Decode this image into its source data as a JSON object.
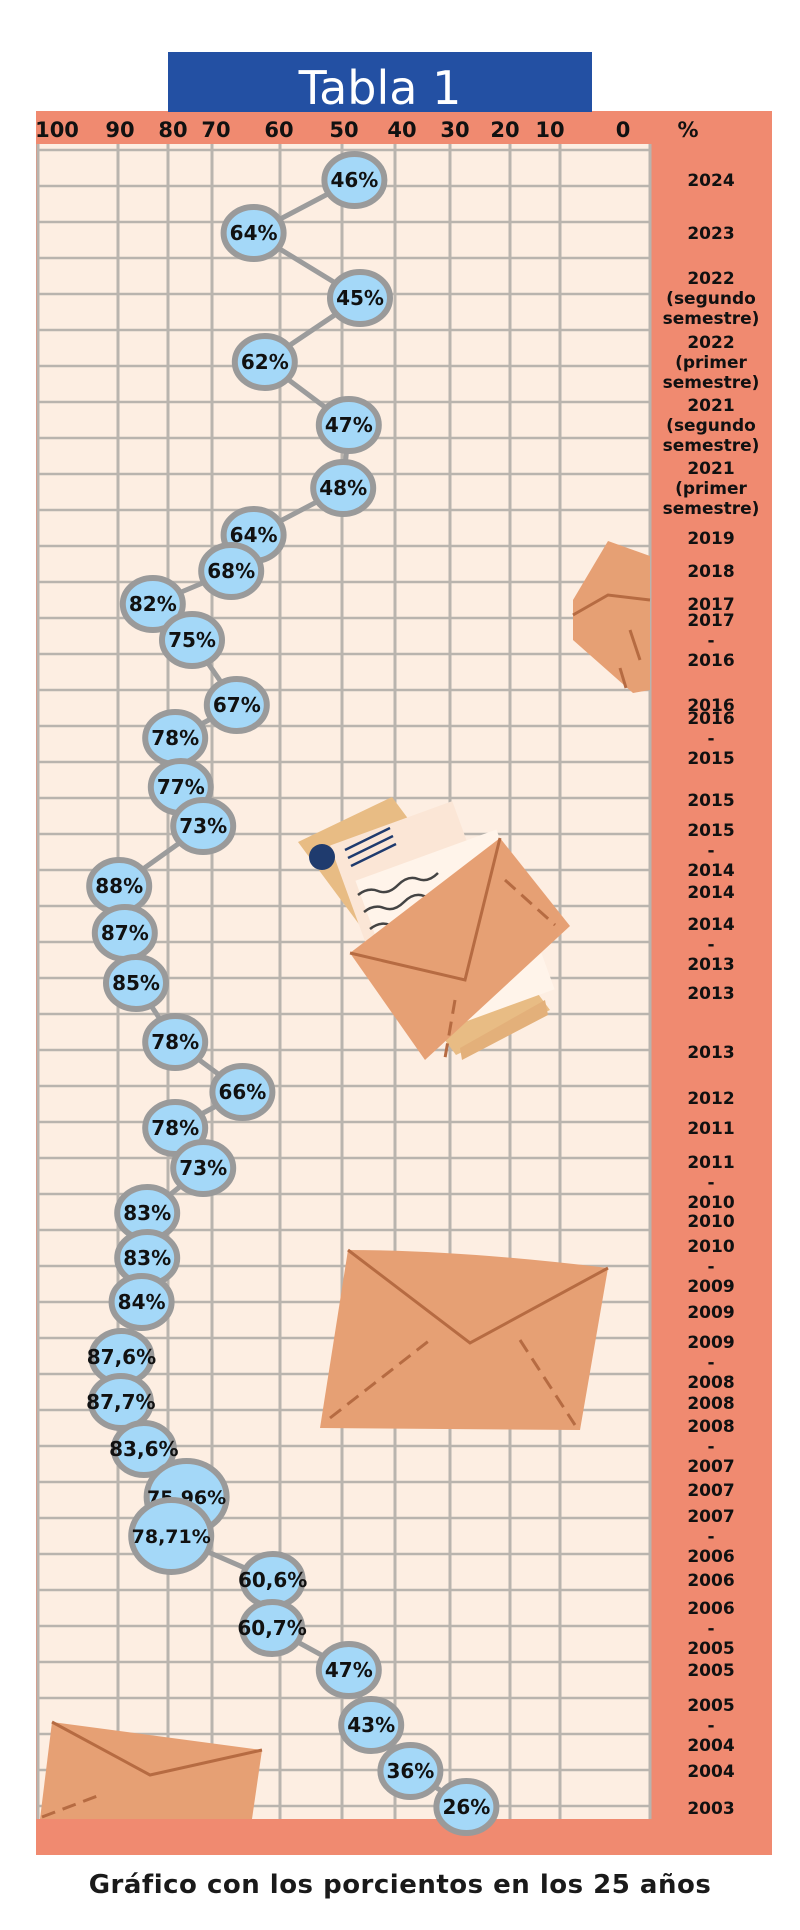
{
  "chart_data": {
    "type": "line",
    "title": "Tabla 1",
    "caption": "Gráfico con los porcientos en los 25 años",
    "axis_unit": "%",
    "x_ticks": [
      "100",
      "90",
      "80",
      "70",
      "60",
      "50",
      "40",
      "30",
      "20",
      "10",
      "0"
    ],
    "x_direction": "reversed",
    "series": [
      {
        "values": [
          {
            "label": "46%",
            "value": 46,
            "category": [
              "2024"
            ]
          },
          {
            "label": "64%",
            "value": 64,
            "category": [
              "2023"
            ]
          },
          {
            "label": "45%",
            "value": 45,
            "category": [
              "2022",
              "(segundo",
              "semestre)"
            ]
          },
          {
            "label": "62%",
            "value": 62,
            "category": [
              "2022",
              "(primer",
              "semestre)"
            ]
          },
          {
            "label": "47%",
            "value": 47,
            "category": [
              "2021",
              "(segundo",
              "semestre)"
            ]
          },
          {
            "label": "48%",
            "value": 48,
            "category": [
              "2021",
              "(primer",
              "semestre)"
            ]
          },
          {
            "label": "64%",
            "value": 64,
            "category": [
              "2019"
            ]
          },
          {
            "label": "68%",
            "value": 68,
            "category": [
              "2018"
            ]
          },
          {
            "label": "82%",
            "value": 82,
            "category": [
              "2017"
            ]
          },
          {
            "label": "75%",
            "value": 75,
            "category": [
              "2017",
              "-",
              "2016"
            ]
          },
          {
            "label": "67%",
            "value": 67,
            "category": [
              "2016"
            ]
          },
          {
            "label": "78%",
            "value": 78,
            "category": [
              "2016",
              "-",
              "2015"
            ]
          },
          {
            "label": "77%",
            "value": 77,
            "category": [
              "2015"
            ]
          },
          {
            "label": "73%",
            "value": 73,
            "category": [
              "2015",
              "-",
              "2014"
            ]
          },
          {
            "label": "88%",
            "value": 88,
            "category": [
              "2014"
            ]
          },
          {
            "label": "87%",
            "value": 87,
            "category": [
              "2014",
              "-",
              "2013"
            ]
          },
          {
            "label": "85%",
            "value": 85,
            "category": [
              "2013"
            ]
          },
          {
            "label": "78%",
            "value": 78,
            "category": [
              "2013"
            ]
          },
          {
            "label": "66%",
            "value": 66,
            "category": [
              "2012"
            ]
          },
          {
            "label": "78%",
            "value": 78,
            "category": [
              "2011"
            ]
          },
          {
            "label": "73%",
            "value": 73,
            "category": [
              "2011",
              "-",
              "2010"
            ]
          },
          {
            "label": "83%",
            "value": 83,
            "category": [
              "2010"
            ]
          },
          {
            "label": "83%",
            "value": 83,
            "category": [
              "2010",
              "-",
              "2009"
            ]
          },
          {
            "label": "84%",
            "value": 84,
            "category": [
              "2009"
            ]
          },
          {
            "label": "87,6%",
            "value": 87.6,
            "category": [
              "2009",
              "-",
              "2008"
            ]
          },
          {
            "label": "87,7%",
            "value": 87.7,
            "category": [
              "2008"
            ]
          },
          {
            "label": "83,6%",
            "value": 83.6,
            "category": [
              "2008",
              "-",
              "2007"
            ]
          },
          {
            "label": "75,96%",
            "value": 75.96,
            "category": [
              "2007"
            ]
          },
          {
            "label": "78,71%",
            "value": 78.71,
            "category": [
              "2007",
              "-",
              "2006"
            ]
          },
          {
            "label": "60,6%",
            "value": 60.6,
            "category": [
              "2006"
            ]
          },
          {
            "label": "60,7%",
            "value": 60.7,
            "category": [
              "2006",
              "-",
              "2005"
            ]
          },
          {
            "label": "47%",
            "value": 47,
            "category": [
              "2005"
            ]
          },
          {
            "label": "43%",
            "value": 43,
            "category": [
              "2005",
              "-",
              "2004"
            ]
          },
          {
            "label": "36%",
            "value": 36,
            "category": [
              "2004"
            ]
          },
          {
            "label": "26%",
            "value": 26,
            "category": [
              "2003"
            ]
          }
        ]
      }
    ]
  },
  "colors": {
    "title_band": "#2350a3",
    "frame": "#f08a70",
    "grid_bg": "#fdeee2",
    "grid_line": "#b9b4ae",
    "point_fill": "#a4d8f8",
    "point_stroke": "#9a9a9a",
    "line": "#9c9c9c",
    "envelope": "#e6a074",
    "envelope_line": "#b66b42",
    "paper": "#fbe6d6",
    "folder": "#e8bc84"
  },
  "decor_icons": [
    "envelope-icon",
    "letter-icon"
  ]
}
